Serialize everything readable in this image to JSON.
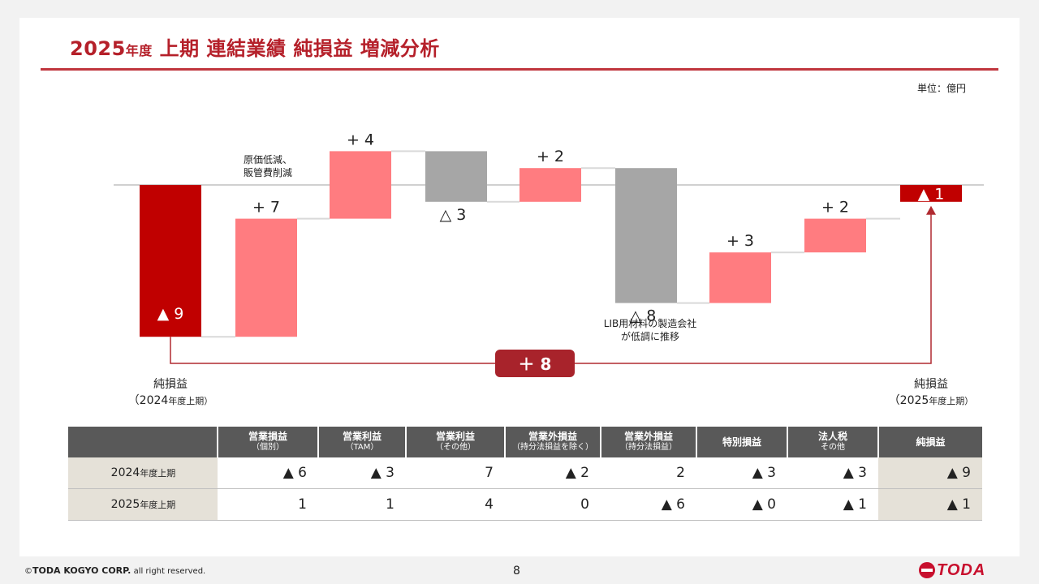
{
  "page": {
    "title_year": "2025",
    "title_year_suffix": "年度",
    "title_rest": "上期 連結業績 純損益 増減分析",
    "unit": "単位：億円",
    "page_number": "8",
    "copyright_brand": "TODA KOGYO CORP.",
    "copyright_prefix": "©",
    "copyright_suffix": "all right reserved.",
    "logo_text": "TODA"
  },
  "chart_data": {
    "type": "bar",
    "subtype": "waterfall",
    "unit": "億円",
    "steps": [
      {
        "kind": "total",
        "value": -9,
        "label": "▲ 9"
      },
      {
        "kind": "delta",
        "value": 7,
        "label": "+ 7"
      },
      {
        "kind": "delta",
        "value": 4,
        "label": "+ 4"
      },
      {
        "kind": "delta",
        "value": -3,
        "label": "△ 3"
      },
      {
        "kind": "delta",
        "value": 2,
        "label": "+ 2"
      },
      {
        "kind": "delta",
        "value": -8,
        "label": "△ 8"
      },
      {
        "kind": "delta",
        "value": 3,
        "label": "+ 3"
      },
      {
        "kind": "delta",
        "value": 2,
        "label": "+ 2"
      },
      {
        "kind": "total",
        "value": -1,
        "label": "▲ 1"
      }
    ],
    "annotations": {
      "cost": "原価低減、\n販管費削減",
      "lib": "LIB用材料の製造会社\nが低調に推移"
    },
    "start_label": "純損益",
    "start_sub_year": "（2024",
    "start_sub_suffix": "年度上期）",
    "end_label": "純損益",
    "end_sub_year": "（2025",
    "end_sub_suffix": "年度上期）",
    "change_label": "＋ 8",
    "colors": {
      "total": "#c00000",
      "increase": "#ff7c80",
      "decrease": "#a6a6a6"
    }
  },
  "table": {
    "columns": [
      {
        "main": "営業損益",
        "sub": "（個別）"
      },
      {
        "main": "営業利益",
        "sub": "（TAM）"
      },
      {
        "main": "営業利益",
        "sub": "（その他）"
      },
      {
        "main": "営業外損益",
        "sub": "（持分法損益を除く）"
      },
      {
        "main": "営業外損益",
        "sub": "（持分法損益）"
      },
      {
        "main": "特別損益",
        "sub": ""
      },
      {
        "main": "法人税",
        "sub": "その他"
      },
      {
        "main": "純損益",
        "sub": ""
      }
    ],
    "rows": [
      {
        "year": "2024",
        "suffix": "年度上期",
        "values": [
          "▲ 6",
          "▲ 3",
          "7",
          "▲ 2",
          "2",
          "▲ 3",
          "▲ 3",
          "▲ 9"
        ]
      },
      {
        "year": "2025",
        "suffix": "年度上期",
        "values": [
          "1",
          "1",
          "4",
          "0",
          "▲ 6",
          "▲ 0",
          "▲ 1",
          "▲ 1"
        ]
      }
    ]
  }
}
